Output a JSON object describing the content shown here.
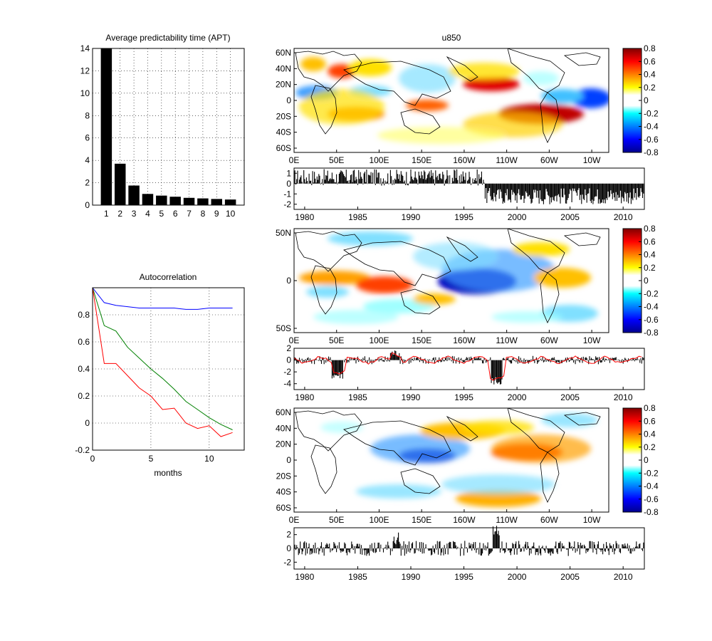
{
  "chart_data": [
    {
      "type": "bar",
      "title": "Average predictability time (APT)",
      "categories": [
        "1",
        "2",
        "3",
        "4",
        "5",
        "6",
        "7",
        "8",
        "9",
        "10"
      ],
      "values": [
        14.0,
        3.7,
        1.75,
        1.0,
        0.85,
        0.75,
        0.65,
        0.6,
        0.55,
        0.5
      ],
      "ylim": [
        0,
        14
      ],
      "yticks": [
        "0",
        "2",
        "4",
        "6",
        "8",
        "10",
        "12",
        "14"
      ],
      "grid": true,
      "bar_color": "#000000"
    },
    {
      "type": "line",
      "title": "Autocorrelation",
      "xlabel": "months",
      "xlim": [
        0,
        13
      ],
      "ylim": [
        -0.2,
        1.0
      ],
      "xticks": [
        "0",
        "5",
        "10"
      ],
      "yticks": [
        "-0.2",
        "0",
        "0.2",
        "0.4",
        "0.6",
        "0.8"
      ],
      "grid": true,
      "x": [
        0,
        1,
        2,
        3,
        4,
        5,
        6,
        7,
        8,
        9,
        10,
        11,
        12
      ],
      "series": [
        {
          "color": "#0000ff",
          "values": [
            1.0,
            0.89,
            0.87,
            0.86,
            0.85,
            0.85,
            0.85,
            0.85,
            0.84,
            0.84,
            0.85,
            0.85,
            0.85
          ]
        },
        {
          "color": "#008000",
          "values": [
            1.0,
            0.72,
            0.68,
            0.56,
            0.48,
            0.4,
            0.33,
            0.25,
            0.16,
            0.1,
            0.04,
            -0.01,
            -0.05
          ]
        },
        {
          "color": "#ff0000",
          "values": [
            1.0,
            0.44,
            0.44,
            0.35,
            0.26,
            0.2,
            0.1,
            0.11,
            0.0,
            -0.04,
            -0.02,
            -0.1,
            -0.07
          ]
        }
      ]
    },
    {
      "type": "heatmap",
      "title": "u850",
      "xticks": [
        "0E",
        "50E",
        "100E",
        "150E",
        "160W",
        "110W",
        "60W",
        "10W"
      ],
      "yticks": [
        "60N",
        "40N",
        "20N",
        "0",
        "20S",
        "40S",
        "60S"
      ],
      "colorbar_ticks": [
        "0.8",
        "0.6",
        "0.4",
        "0.2",
        "0",
        "-0.2",
        "-0.4",
        "-0.6",
        "-0.8"
      ],
      "clim": [
        -0.8,
        0.8
      ]
    },
    {
      "type": "bar",
      "xticks": [
        "1980",
        "1985",
        "1990",
        "1995",
        "2000",
        "2005",
        "2010"
      ],
      "yticks": [
        "1",
        "0",
        "-1",
        "-2"
      ],
      "ylim": [
        -2.5,
        1.5
      ],
      "x_range": [
        1979,
        2012
      ]
    },
    {
      "type": "heatmap",
      "xticks": [
        "0E",
        "50E",
        "100E",
        "150E",
        "160W",
        "110W",
        "60W",
        "10W"
      ],
      "yticks": [
        "50N",
        "0",
        "50S"
      ],
      "colorbar_ticks": [
        "0.8",
        "0.6",
        "0.4",
        "0.2",
        "0",
        "-0.2",
        "-0.4",
        "-0.6",
        "-0.8"
      ],
      "clim": [
        -0.8,
        0.8
      ]
    },
    {
      "type": "bar",
      "xticks": [
        "1980",
        "1985",
        "1990",
        "1995",
        "2000",
        "2005",
        "2010"
      ],
      "yticks": [
        "2",
        "0",
        "-2",
        "-4"
      ],
      "ylim": [
        -5,
        2
      ],
      "x_range": [
        1979,
        2012
      ],
      "overlay_color": "#ff0000"
    },
    {
      "type": "heatmap",
      "xticks": [
        "0E",
        "50E",
        "100E",
        "150E",
        "160W",
        "110W",
        "60W",
        "10W"
      ],
      "yticks": [
        "60N",
        "40N",
        "20N",
        "0",
        "20S",
        "40S",
        "60S"
      ],
      "colorbar_ticks": [
        "0.8",
        "0.6",
        "0.4",
        "0.2",
        "0",
        "-0.2",
        "-0.4",
        "-0.6",
        "-0.8"
      ],
      "clim": [
        -0.8,
        0.8
      ]
    },
    {
      "type": "bar",
      "xticks": [
        "1980",
        "1985",
        "1990",
        "1995",
        "2000",
        "2005",
        "2010"
      ],
      "yticks": [
        "2",
        "0",
        "-2"
      ],
      "ylim": [
        -3,
        3
      ],
      "x_range": [
        1979,
        2012
      ]
    }
  ]
}
